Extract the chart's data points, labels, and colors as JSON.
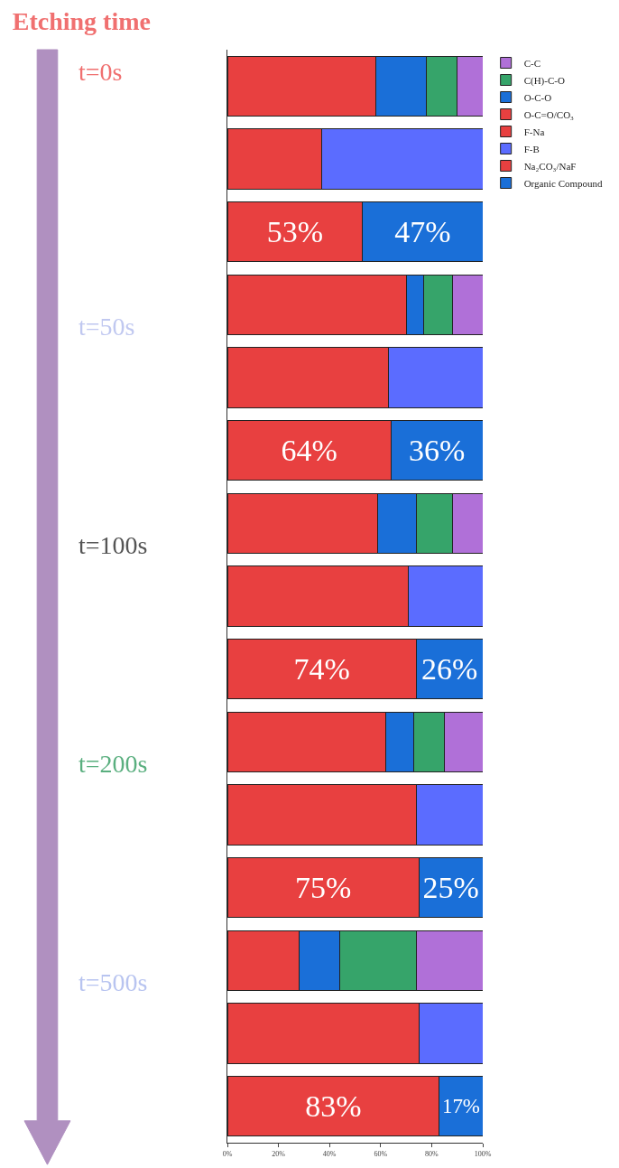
{
  "chart_data": {
    "type": "bar",
    "orientation": "horizontal",
    "stacked": true,
    "title": "Etching time",
    "categories": [
      null,
      null,
      null,
      null,
      null,
      null,
      null,
      null,
      null,
      null,
      null,
      null,
      null,
      null,
      null
    ],
    "series": [
      {
        "name": "O-C=O/CO₃",
        "color": "#e84040",
        "values": [
          58,
          null,
          null,
          70,
          null,
          null,
          59,
          null,
          null,
          62,
          null,
          null,
          28,
          null,
          null
        ]
      },
      {
        "name": "O-C-O",
        "color": "#1a6fd8",
        "values": [
          20,
          null,
          null,
          7,
          null,
          null,
          15,
          null,
          null,
          11,
          null,
          null,
          16,
          null,
          null
        ]
      },
      {
        "name": "C(H)-C-O",
        "color": "#36a46a",
        "values": [
          12,
          null,
          null,
          11,
          null,
          null,
          14,
          null,
          null,
          12,
          null,
          null,
          30,
          null,
          null
        ]
      },
      {
        "name": "C-C",
        "color": "#b070d8",
        "values": [
          10,
          null,
          null,
          12,
          null,
          null,
          12,
          null,
          null,
          15,
          null,
          null,
          26,
          null,
          null
        ]
      },
      {
        "name": "F-Na",
        "color": "#e84040",
        "values": [
          null,
          37,
          null,
          null,
          63,
          null,
          null,
          71,
          null,
          null,
          74,
          null,
          null,
          75,
          null
        ]
      },
      {
        "name": "F-B",
        "color": "#5b6cff",
        "values": [
          null,
          63,
          null,
          null,
          37,
          null,
          null,
          29,
          null,
          null,
          26,
          null,
          null,
          25,
          null
        ]
      },
      {
        "name": "Na₂CO₃/NaF",
        "color": "#e84040",
        "values": [
          null,
          null,
          53,
          null,
          null,
          64,
          null,
          null,
          74,
          null,
          null,
          75,
          null,
          null,
          83
        ],
        "value_labels": [
          null,
          null,
          "53%",
          null,
          null,
          "64%",
          null,
          null,
          "74%",
          null,
          null,
          "75%",
          null,
          null,
          "83%"
        ]
      },
      {
        "name": "Organic Compound",
        "color": "#1a6fd8",
        "values": [
          null,
          null,
          47,
          null,
          null,
          36,
          null,
          null,
          26,
          null,
          null,
          25,
          null,
          null,
          17
        ],
        "value_labels": [
          null,
          null,
          "47%",
          null,
          null,
          "36%",
          null,
          null,
          "26%",
          null,
          null,
          "25%",
          null,
          null,
          "17%"
        ]
      }
    ],
    "xlim": [
      0,
      100
    ],
    "xticks": [
      {
        "value": 0,
        "label": "0%"
      },
      {
        "value": 20,
        "label": "20%"
      },
      {
        "value": 40,
        "label": "40%"
      },
      {
        "value": 60,
        "label": "60%"
      },
      {
        "value": 80,
        "label": "80%"
      },
      {
        "value": 100,
        "label": "100%"
      }
    ],
    "tick_labels": "x",
    "legend": "top right",
    "annotations": [
      "t=0s",
      "t=50s",
      "t=100s",
      "t=200s",
      "t=500s"
    ]
  }
}
